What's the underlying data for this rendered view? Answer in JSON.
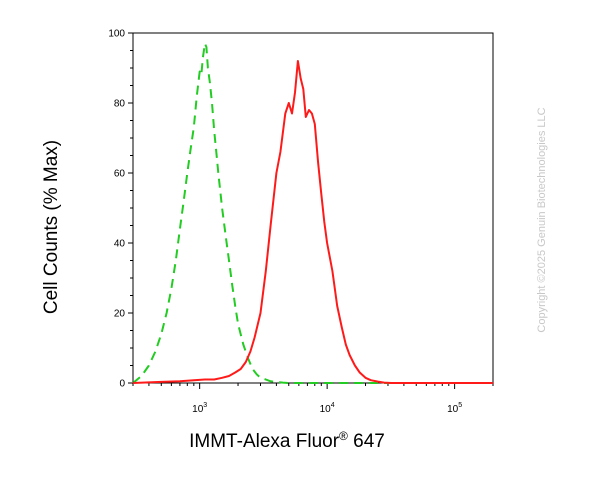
{
  "chart_data": {
    "type": "line",
    "xlabel": {
      "main": "IMMT-Alexa Fluor",
      "reg": "®",
      "suffix": " 647"
    },
    "ylabel": "Cell Counts (% Max)",
    "x_scale": "log",
    "xlim": [
      300,
      200000
    ],
    "ylim": [
      0,
      100
    ],
    "x_ticks": [
      {
        "value": 1000,
        "base": "10",
        "exp": "3"
      },
      {
        "value": 10000,
        "base": "10",
        "exp": "4"
      },
      {
        "value": 100000,
        "base": "10",
        "exp": "5"
      }
    ],
    "y_ticks": [
      0,
      20,
      40,
      60,
      80,
      100
    ],
    "grid": false,
    "series": [
      {
        "color": "#22cc22",
        "style": "dashed",
        "x": [
          300,
          350,
          400,
          450,
          500,
          550,
          600,
          650,
          700,
          750,
          800,
          850,
          900,
          950,
          1000,
          1030,
          1060,
          1100,
          1130,
          1160,
          1200,
          1250,
          1300,
          1350,
          1400,
          1500,
          1600,
          1700,
          1800,
          1900,
          2000,
          2200,
          2400,
          2600,
          2800,
          3000,
          3300,
          3600,
          4000,
          4500,
          5000,
          6000,
          8000,
          12000,
          20000,
          50000,
          100000,
          200000
        ],
        "y": [
          0,
          2,
          5,
          9,
          14,
          20,
          27,
          35,
          44,
          52,
          60,
          67,
          73,
          82,
          89,
          88,
          93,
          97,
          96,
          90,
          86,
          80,
          72,
          66,
          60,
          50,
          42,
          35,
          28,
          22,
          17,
          11,
          7,
          4,
          2.5,
          1.5,
          1,
          0.5,
          0.3,
          0.1,
          0,
          0,
          0,
          0,
          0,
          0,
          0,
          0
        ]
      },
      {
        "color": "#ff1a1a",
        "style": "solid",
        "x": [
          300,
          500,
          700,
          900,
          1100,
          1300,
          1500,
          1700,
          1900,
          2100,
          2300,
          2500,
          2700,
          3000,
          3300,
          3600,
          4000,
          4300,
          4700,
          5000,
          5300,
          5600,
          5900,
          6200,
          6500,
          6800,
          7200,
          7600,
          8000,
          8500,
          9000,
          9500,
          10000,
          11000,
          12000,
          13000,
          14000,
          15000,
          16500,
          18000,
          20000,
          22000,
          25000,
          28000,
          32000,
          40000,
          60000,
          100000,
          200000
        ],
        "y": [
          0,
          0.3,
          0.5,
          0.8,
          1,
          1,
          1.5,
          2,
          3,
          4,
          6,
          9,
          13,
          20,
          32,
          45,
          60,
          66,
          77,
          80,
          77,
          83,
          92,
          87,
          84,
          76,
          78,
          77,
          74,
          63,
          54,
          46,
          40,
          32,
          22,
          16,
          11,
          8,
          5,
          3,
          1.5,
          0.8,
          0.4,
          0.1,
          0,
          0,
          0,
          0,
          0
        ]
      }
    ]
  },
  "watermark": "Copyright ©2025 Genuin Biotechnologies LLC"
}
